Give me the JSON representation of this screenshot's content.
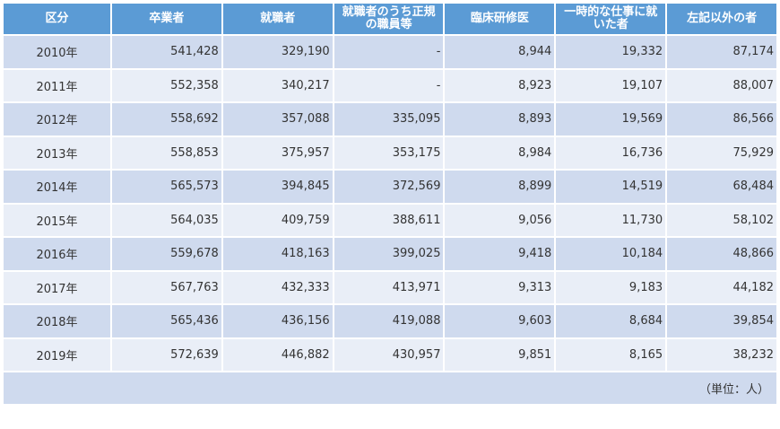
{
  "table": {
    "header": [
      "区分",
      "卒業者",
      "就職者",
      "就職者のうち正規の職員等",
      "臨床研修医",
      "一時的な仕事に就いた者",
      "左記以外の者"
    ],
    "rows": [
      [
        "2010年",
        "541,428",
        "329,190",
        "-",
        "8,944",
        "19,332",
        "87,174"
      ],
      [
        "2011年",
        "552,358",
        "340,217",
        "-",
        "8,923",
        "19,107",
        "88,007"
      ],
      [
        "2012年",
        "558,692",
        "357,088",
        "335,095",
        "8,893",
        "19,569",
        "86,566"
      ],
      [
        "2013年",
        "558,853",
        "375,957",
        "353,175",
        "8,984",
        "16,736",
        "75,929"
      ],
      [
        "2014年",
        "565,573",
        "394,845",
        "372,569",
        "8,899",
        "14,519",
        "68,484"
      ],
      [
        "2015年",
        "564,035",
        "409,759",
        "388,611",
        "9,056",
        "11,730",
        "58,102"
      ],
      [
        "2016年",
        "559,678",
        "418,163",
        "399,025",
        "9,418",
        "10,184",
        "48,866"
      ],
      [
        "2017年",
        "567,763",
        "432,333",
        "413,971",
        "9,313",
        "9,183",
        "44,182"
      ],
      [
        "2018年",
        "565,436",
        "436,156",
        "419,088",
        "9,603",
        "8,684",
        "39,854"
      ],
      [
        "2019年",
        "572,639",
        "446,882",
        "430,957",
        "9,851",
        "8,165",
        "38,232"
      ]
    ],
    "note": "（単位：人）"
  }
}
